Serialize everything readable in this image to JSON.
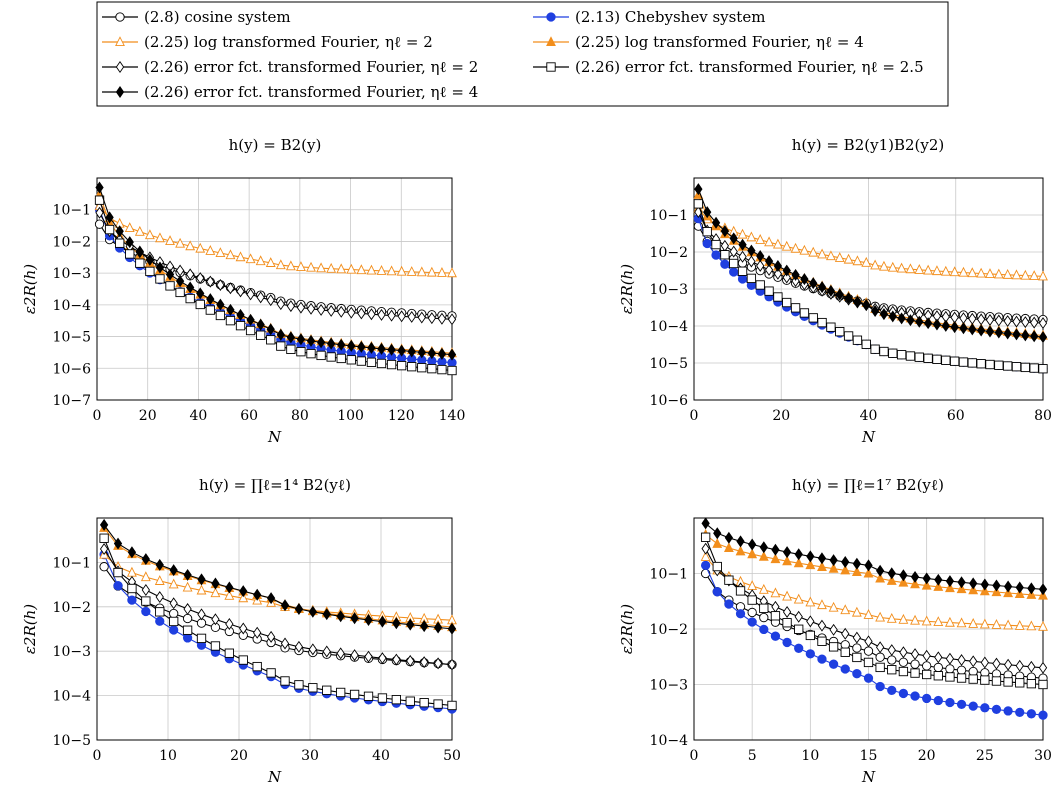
{
  "legend": [
    {
      "key": "cosine",
      "label": "(2.8) cosine system",
      "color": "#000000",
      "marker": "circle-open"
    },
    {
      "key": "cheb",
      "label": "(2.13) Chebyshev system",
      "color": "#1f3fe0",
      "marker": "circle-filled"
    },
    {
      "key": "log2",
      "label": "(2.25) log transformed Fourier, ηℓ = 2",
      "color": "#f28e1c",
      "marker": "triangle-open"
    },
    {
      "key": "log4",
      "label": "(2.25) log transformed Fourier, ηℓ = 4",
      "color": "#f28e1c",
      "marker": "triangle-filled"
    },
    {
      "key": "erf2",
      "label": "(2.26) error fct. transformed Fourier, ηℓ = 2",
      "color": "#000000",
      "marker": "diamond-open"
    },
    {
      "key": "erf25",
      "label": "(2.26) error fct. transformed Fourier, ηℓ = 2.5",
      "color": "#000000",
      "marker": "square-open"
    },
    {
      "key": "erf4",
      "label": "(2.26) error fct. transformed Fourier, ηℓ = 4",
      "color": "#000000",
      "marker": "diamond-filled"
    }
  ],
  "chart_data": [
    {
      "type": "line",
      "title": "h(y) = B2(y)",
      "xlabel": "N",
      "ylabel": "ε2R(h)",
      "xlim": [
        0,
        140
      ],
      "ylim": [
        1e-07,
        1
      ],
      "yscale": "log",
      "xticks": [
        0,
        20,
        40,
        60,
        80,
        100,
        120,
        140
      ],
      "yticks": [
        [
          "10−7",
          1e-07
        ],
        [
          "10−6",
          1e-06
        ],
        [
          "10−5",
          1e-05
        ],
        [
          "10−4",
          0.0001
        ],
        [
          "10−3",
          0.001
        ],
        [
          "10−2",
          0.01
        ],
        [
          "10−1",
          0.1
        ]
      ],
      "grid": true,
      "series": [
        {
          "key": "cosine",
          "x": [
            1,
            70,
            140
          ],
          "y": [
            0.035,
            0.00016,
            4.5e-05
          ]
        },
        {
          "key": "cheb",
          "x": [
            1,
            70,
            140
          ],
          "y": [
            0.1,
            1.1e-05,
            1.5e-06
          ]
        },
        {
          "key": "log2",
          "x": [
            1,
            70,
            140
          ],
          "y": [
            0.13,
            0.002,
            0.001
          ]
        },
        {
          "key": "log4",
          "x": [
            1,
            70,
            140
          ],
          "y": [
            0.3,
            1.6e-05,
            3e-06
          ]
        },
        {
          "key": "erf2",
          "x": [
            1,
            70,
            140
          ],
          "y": [
            0.08,
            0.00013,
            3.5e-05
          ]
        },
        {
          "key": "erf25",
          "x": [
            1,
            70,
            140
          ],
          "y": [
            0.2,
            7e-06,
            8.5e-07
          ]
        },
        {
          "key": "erf4",
          "x": [
            1,
            70,
            140
          ],
          "y": [
            0.5,
            1.5e-05,
            2.7e-06
          ]
        }
      ]
    },
    {
      "type": "line",
      "title": "h(y) = B2(y1)B2(y2)",
      "xlabel": "N",
      "ylabel": "ε2R(h)",
      "xlim": [
        0,
        80
      ],
      "ylim": [
        1e-06,
        1
      ],
      "yscale": "log",
      "xticks": [
        0,
        20,
        40,
        60,
        80
      ],
      "yticks": [
        [
          "10−6",
          1e-06
        ],
        [
          "10−5",
          1e-05
        ],
        [
          "10−4",
          0.0001
        ],
        [
          "10−3",
          0.001
        ],
        [
          "10−2",
          0.01
        ],
        [
          "10−1",
          0.1
        ]
      ],
      "grid": true,
      "series": [
        {
          "key": "cosine",
          "x": [
            1,
            40,
            80
          ],
          "y": [
            0.05,
            0.0004,
            0.00015
          ]
        },
        {
          "key": "cheb",
          "x": [
            1,
            40,
            80
          ],
          "y": [
            0.08,
            3e-05,
            7e-06
          ]
        },
        {
          "key": "log2",
          "x": [
            1,
            40,
            80
          ],
          "y": [
            0.15,
            0.005,
            0.0022
          ]
        },
        {
          "key": "log4",
          "x": [
            1,
            40,
            80
          ],
          "y": [
            0.35,
            0.0004,
            5.5e-05
          ]
        },
        {
          "key": "erf2",
          "x": [
            1,
            40,
            80
          ],
          "y": [
            0.12,
            0.00035,
            0.00012
          ]
        },
        {
          "key": "erf25",
          "x": [
            1,
            40,
            80
          ],
          "y": [
            0.2,
            3e-05,
            7e-06
          ]
        },
        {
          "key": "erf4",
          "x": [
            1,
            40,
            80
          ],
          "y": [
            0.5,
            0.00035,
            5e-05
          ]
        }
      ]
    },
    {
      "type": "line",
      "title": "h(y) = ∏ℓ=1⁴ B2(yℓ)",
      "xlabel": "N",
      "ylabel": "ε2R(h)",
      "xlim": [
        0,
        50
      ],
      "ylim": [
        1e-05,
        1
      ],
      "yscale": "log",
      "xticks": [
        0,
        10,
        20,
        30,
        40,
        50
      ],
      "yticks": [
        [
          "10−5",
          1e-05
        ],
        [
          "10−4",
          0.0001
        ],
        [
          "10−3",
          0.001
        ],
        [
          "10−2",
          0.01
        ],
        [
          "10−1",
          0.1
        ]
      ],
      "grid": true,
      "series": [
        {
          "key": "cosine",
          "x": [
            1,
            25,
            50
          ],
          "y": [
            0.08,
            0.0015,
            0.0005
          ]
        },
        {
          "key": "cheb",
          "x": [
            1,
            25,
            50
          ],
          "y": [
            0.15,
            0.00025,
            5e-05
          ]
        },
        {
          "key": "log2",
          "x": [
            1,
            25,
            50
          ],
          "y": [
            0.15,
            0.012,
            0.005
          ]
        },
        {
          "key": "log4",
          "x": [
            1,
            25,
            50
          ],
          "y": [
            0.6,
            0.015,
            0.0035
          ]
        },
        {
          "key": "erf2",
          "x": [
            1,
            25,
            50
          ],
          "y": [
            0.2,
            0.002,
            0.0005
          ]
        },
        {
          "key": "erf25",
          "x": [
            1,
            25,
            50
          ],
          "y": [
            0.35,
            0.0003,
            6e-05
          ]
        },
        {
          "key": "erf4",
          "x": [
            1,
            25,
            50
          ],
          "y": [
            0.7,
            0.015,
            0.0032
          ]
        }
      ]
    },
    {
      "type": "line",
      "title": "h(y) = ∏ℓ=1⁷ B2(yℓ)",
      "xlabel": "N",
      "ylabel": "ε2R(h)",
      "xlim": [
        0,
        30
      ],
      "ylim": [
        0.0001,
        1
      ],
      "yscale": "log",
      "xticks": [
        0,
        5,
        10,
        15,
        20,
        25,
        30
      ],
      "yticks": [
        [
          "10−4",
          0.0001
        ],
        [
          "10−3",
          0.001
        ],
        [
          "10−2",
          0.01
        ],
        [
          "10−1",
          0.1
        ]
      ],
      "grid": true,
      "series": [
        {
          "key": "cosine",
          "x": [
            1,
            15,
            30
          ],
          "y": [
            0.1,
            0.004,
            0.0013
          ]
        },
        {
          "key": "cheb",
          "x": [
            1,
            15,
            30
          ],
          "y": [
            0.14,
            0.0013,
            0.00028
          ]
        },
        {
          "key": "log2",
          "x": [
            1,
            15,
            30
          ],
          "y": [
            0.2,
            0.018,
            0.011
          ]
        },
        {
          "key": "log4",
          "x": [
            1,
            15,
            30
          ],
          "y": [
            0.5,
            0.1,
            0.04
          ]
        },
        {
          "key": "erf2",
          "x": [
            1,
            15,
            30
          ],
          "y": [
            0.28,
            0.006,
            0.002
          ]
        },
        {
          "key": "erf25",
          "x": [
            1,
            15,
            30
          ],
          "y": [
            0.45,
            0.0025,
            0.001
          ]
        },
        {
          "key": "erf4",
          "x": [
            1,
            15,
            30
          ],
          "y": [
            0.8,
            0.14,
            0.052
          ]
        }
      ]
    }
  ]
}
